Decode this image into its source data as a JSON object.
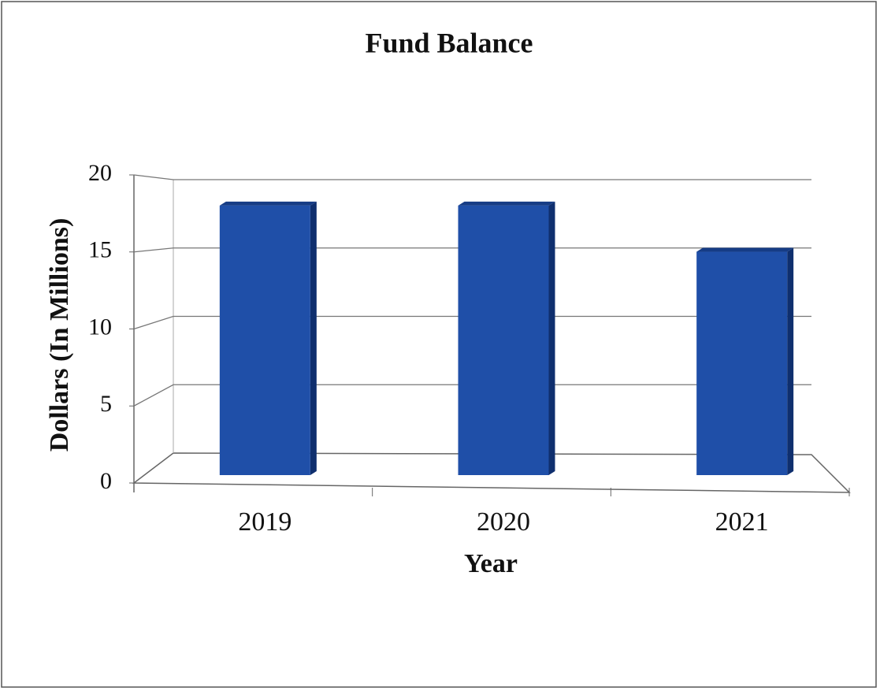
{
  "chart_data": {
    "type": "bar",
    "title": "Fund Balance",
    "x_label": "Year",
    "y_label": "Dollars (In Millions)",
    "categories": [
      "2019",
      "2020",
      "2021"
    ],
    "values": [
      17.5,
      17.5,
      14.5
    ],
    "color": "#1f4fa8",
    "ylim": [
      0,
      20
    ],
    "yticks": [
      0,
      5,
      10,
      15,
      20
    ],
    "grid": true
  }
}
